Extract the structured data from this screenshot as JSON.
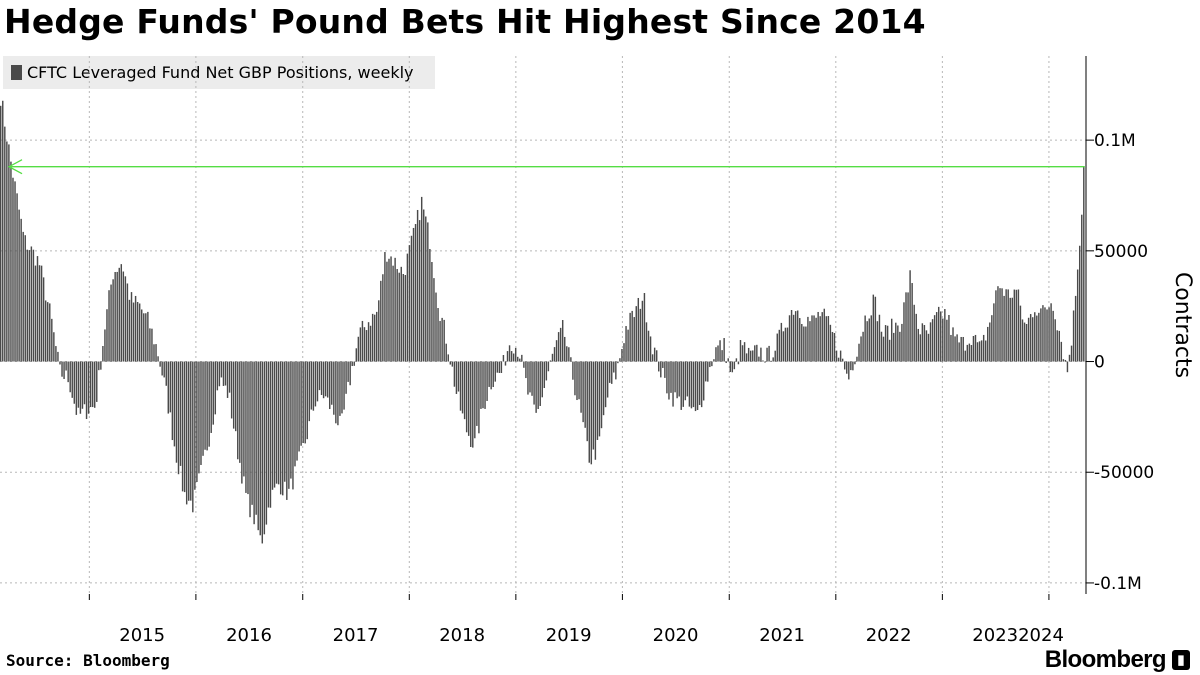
{
  "title": "Hedge Funds' Pound Bets Hit Highest Since 2014",
  "source": {
    "label": "Source:",
    "value": "Bloomberg"
  },
  "logo": "Bloomberg",
  "colors": {
    "bars": "#4a4a4a",
    "arrow": "#55dd44",
    "grid": "#b8b8b8",
    "legend_bg": "#ececec"
  },
  "chart_data": {
    "type": "bar",
    "frequency": "weekly",
    "legend": {
      "placement": "top-left",
      "entries": [
        "CFTC Leveraged Fund Net GBP Positions, weekly"
      ]
    },
    "ylabel": "Contracts",
    "y_axis_side": "right",
    "ylim": [
      -105000,
      138000
    ],
    "yticks": [
      {
        "value": 100000,
        "label": "0.1M"
      },
      {
        "value": 50000,
        "label": "50000"
      },
      {
        "value": 0,
        "label": "0"
      },
      {
        "value": -50000,
        "label": "-50000"
      },
      {
        "value": -100000,
        "label": "-0.1M"
      }
    ],
    "xlim": [
      "2014-03-01",
      "2024-05-07"
    ],
    "xticks": [
      "2015",
      "2016",
      "2017",
      "2018",
      "2019",
      "2020",
      "2021",
      "2022",
      "2023",
      "2024"
    ],
    "grid": true,
    "annotation": {
      "type": "arrow",
      "from": "2024-04-30",
      "to": "2014-04-01",
      "value": 88000
    },
    "series": [
      {
        "name": "CFTC Leveraged Fund Net GBP Positions, weekly",
        "points": [
          [
            "2014-03-01",
            120000
          ],
          [
            "2014-04-05",
            90000
          ],
          [
            "2014-05-20",
            55000
          ],
          [
            "2014-07-10",
            45000
          ],
          [
            "2014-08-20",
            20000
          ],
          [
            "2014-09-20",
            -5000
          ],
          [
            "2014-10-20",
            -8000
          ],
          [
            "2014-11-20",
            -25000
          ],
          [
            "2014-12-20",
            -22000
          ],
          [
            "2015-01-20",
            -20000
          ],
          [
            "2015-02-20",
            15000
          ],
          [
            "2015-03-20",
            40000
          ],
          [
            "2015-04-20",
            45000
          ],
          [
            "2015-05-20",
            28000
          ],
          [
            "2015-06-20",
            25000
          ],
          [
            "2015-07-20",
            18000
          ],
          [
            "2015-08-20",
            5000
          ],
          [
            "2015-09-20",
            -15000
          ],
          [
            "2015-10-20",
            -40000
          ],
          [
            "2015-11-20",
            -60000
          ],
          [
            "2015-12-20",
            -65000
          ],
          [
            "2016-01-20",
            -48000
          ],
          [
            "2016-02-20",
            -30000
          ],
          [
            "2016-03-20",
            -8000
          ],
          [
            "2016-04-20",
            -15000
          ],
          [
            "2016-05-20",
            -40000
          ],
          [
            "2016-06-20",
            -62000
          ],
          [
            "2016-07-20",
            -72000
          ],
          [
            "2016-08-10",
            -82000
          ],
          [
            "2016-09-10",
            -62000
          ],
          [
            "2016-10-10",
            -55000
          ],
          [
            "2016-11-10",
            -60000
          ],
          [
            "2016-12-10",
            -48000
          ],
          [
            "2017-01-10",
            -35000
          ],
          [
            "2017-02-10",
            -18000
          ],
          [
            "2017-03-10",
            -15000
          ],
          [
            "2017-04-10",
            -22000
          ],
          [
            "2017-05-10",
            -30000
          ],
          [
            "2017-06-10",
            -8000
          ],
          [
            "2017-07-10",
            12000
          ],
          [
            "2017-08-10",
            18000
          ],
          [
            "2017-09-10",
            22000
          ],
          [
            "2017-10-10",
            50000
          ],
          [
            "2017-11-10",
            45000
          ],
          [
            "2017-12-10",
            40000
          ],
          [
            "2018-01-10",
            55000
          ],
          [
            "2018-02-10",
            72000
          ],
          [
            "2018-03-10",
            55000
          ],
          [
            "2018-04-10",
            25000
          ],
          [
            "2018-05-10",
            8000
          ],
          [
            "2018-06-10",
            -15000
          ],
          [
            "2018-07-10",
            -30000
          ],
          [
            "2018-08-10",
            -38000
          ],
          [
            "2018-09-10",
            -20000
          ],
          [
            "2018-10-10",
            -8000
          ],
          [
            "2018-11-10",
            -5000
          ],
          [
            "2018-12-10",
            10000
          ],
          [
            "2019-01-10",
            5000
          ],
          [
            "2019-02-10",
            -15000
          ],
          [
            "2019-03-10",
            -25000
          ],
          [
            "2019-04-10",
            -10000
          ],
          [
            "2019-05-10",
            5000
          ],
          [
            "2019-06-10",
            15000
          ],
          [
            "2019-07-10",
            -5000
          ],
          [
            "2019-08-10",
            -25000
          ],
          [
            "2019-09-10",
            -45000
          ],
          [
            "2019-10-10",
            -38000
          ],
          [
            "2019-11-10",
            -15000
          ],
          [
            "2019-12-10",
            -5000
          ],
          [
            "2020-01-10",
            15000
          ],
          [
            "2020-02-10",
            22000
          ],
          [
            "2020-03-10",
            30000
          ],
          [
            "2020-04-10",
            8000
          ],
          [
            "2020-05-10",
            -5000
          ],
          [
            "2020-06-10",
            -15000
          ],
          [
            "2020-07-10",
            -18000
          ],
          [
            "2020-08-10",
            -20000
          ],
          [
            "2020-09-10",
            -25000
          ],
          [
            "2020-10-10",
            -10000
          ],
          [
            "2020-11-10",
            5000
          ],
          [
            "2020-12-10",
            8000
          ],
          [
            "2021-01-10",
            -8000
          ],
          [
            "2021-02-10",
            8000
          ],
          [
            "2021-03-10",
            2000
          ],
          [
            "2021-04-10",
            5000
          ],
          [
            "2021-05-10",
            2000
          ],
          [
            "2021-06-10",
            8000
          ],
          [
            "2021-07-10",
            18000
          ],
          [
            "2021-08-10",
            25000
          ],
          [
            "2021-09-10",
            20000
          ],
          [
            "2021-10-10",
            18000
          ],
          [
            "2021-11-10",
            22000
          ],
          [
            "2021-12-10",
            15000
          ],
          [
            "2022-01-10",
            5000
          ],
          [
            "2022-02-10",
            -8000
          ],
          [
            "2022-03-10",
            5000
          ],
          [
            "2022-04-10",
            20000
          ],
          [
            "2022-05-10",
            28000
          ],
          [
            "2022-06-10",
            12000
          ],
          [
            "2022-07-10",
            15000
          ],
          [
            "2022-08-10",
            18000
          ],
          [
            "2022-09-10",
            38000
          ],
          [
            "2022-10-10",
            15000
          ],
          [
            "2022-11-10",
            12000
          ],
          [
            "2022-12-10",
            20000
          ],
          [
            "2023-01-10",
            22000
          ],
          [
            "2023-02-10",
            10000
          ],
          [
            "2023-03-10",
            8000
          ],
          [
            "2023-04-10",
            12000
          ],
          [
            "2023-05-10",
            5000
          ],
          [
            "2023-06-10",
            18000
          ],
          [
            "2023-07-10",
            35000
          ],
          [
            "2023-08-10",
            30000
          ],
          [
            "2023-09-10",
            32000
          ],
          [
            "2023-10-10",
            15000
          ],
          [
            "2023-11-10",
            25000
          ],
          [
            "2023-12-10",
            22000
          ],
          [
            "2024-01-10",
            28000
          ],
          [
            "2024-02-10",
            10000
          ],
          [
            "2024-03-01",
            -5000
          ],
          [
            "2024-03-20",
            15000
          ],
          [
            "2024-04-10",
            50000
          ],
          [
            "2024-04-30",
            88000
          ]
        ]
      }
    ]
  }
}
